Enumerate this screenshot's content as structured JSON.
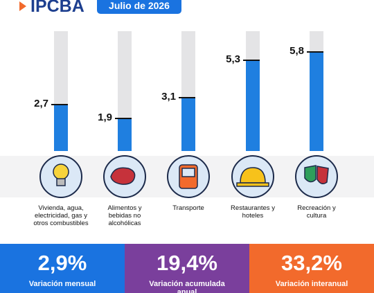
{
  "header": {
    "logo": "IPCBA",
    "badge": "Julio de 2026"
  },
  "chart_data": {
    "type": "bar",
    "categories": [
      "Vivienda, agua, electricidad, gas y otros combustibles",
      "Alimentos y bebidas no alcohólicas",
      "Transporte",
      "Restaurantes y hoteles",
      "Recreación y cultura"
    ],
    "values": [
      2.7,
      1.9,
      3.1,
      5.3,
      5.8
    ],
    "value_labels": [
      "2,7",
      "1,9",
      "3,1",
      "5,3",
      "5,8"
    ],
    "color": "#1f7fe0",
    "ylim": [
      0,
      7
    ]
  },
  "stats": [
    {
      "value": "2,9%",
      "label": "Variación mensual",
      "color": "#1a73e0"
    },
    {
      "value": "19,4%",
      "label": "Variación acumulada anual",
      "color": "#7a3f9c"
    },
    {
      "value": "33,2%",
      "label": "Variación interanual",
      "color": "#f26a2c"
    }
  ]
}
